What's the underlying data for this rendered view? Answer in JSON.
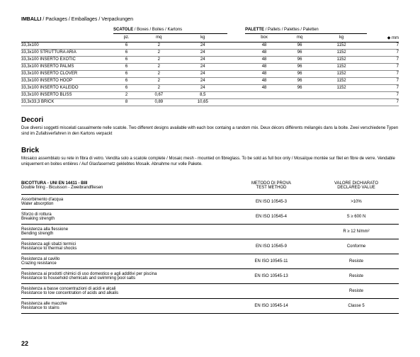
{
  "header": {
    "title": "IMBALLI",
    "multi": " / Packages / Emballages / Verpackungen"
  },
  "group1": {
    "label": "SCATOLE",
    "multi": " / Boxes / Boites / Kartons"
  },
  "group2": {
    "label": "PALETTE",
    "multi": " / Pallets / Palettes / Paletten"
  },
  "cols": {
    "c1": "pz.",
    "c2": "mq",
    "c3": "kg",
    "c4": "box",
    "c5": "mq",
    "c6": "kg",
    "c7": "◆ mm"
  },
  "rows": [
    {
      "name": "33,3x100",
      "pz": "6",
      "mq": "2",
      "kg": "24",
      "box": "48",
      "pmq": "96",
      "pkg": "1152",
      "mm": "7"
    },
    {
      "name": "33,3x100 STRUTTURA ARIA",
      "pz": "6",
      "mq": "2",
      "kg": "24",
      "box": "48",
      "pmq": "96",
      "pkg": "1152",
      "mm": "7"
    },
    {
      "name": "33,3x100 INSERTO EXOTIC",
      "pz": "6",
      "mq": "2",
      "kg": "24",
      "box": "48",
      "pmq": "96",
      "pkg": "1152",
      "mm": "7"
    },
    {
      "name": "33,3x100 INSERTO PALMS",
      "pz": "6",
      "mq": "2",
      "kg": "24",
      "box": "48",
      "pmq": "96",
      "pkg": "1152",
      "mm": "7"
    },
    {
      "name": "33,3x100 INSERTO CLOVER",
      "pz": "6",
      "mq": "2",
      "kg": "24",
      "box": "48",
      "pmq": "96",
      "pkg": "1152",
      "mm": "7"
    },
    {
      "name": "33,3x100 INSERTO HOOP",
      "pz": "6",
      "mq": "2",
      "kg": "24",
      "box": "48",
      "pmq": "96",
      "pkg": "1152",
      "mm": "7"
    },
    {
      "name": "33,3x100 INSERTO KALEIDO",
      "pz": "6",
      "mq": "2",
      "kg": "24",
      "box": "48",
      "pmq": "96",
      "pkg": "1152",
      "mm": "7"
    },
    {
      "name": "33,3x100 INSERTO BLISS",
      "pz": "2",
      "mq": "0,67",
      "kg": "8,5",
      "box": "",
      "pmq": "",
      "pkg": "",
      "mm": "7"
    },
    {
      "name": "33,3x33,3 BRICK",
      "pz": "8",
      "mq": "0,89",
      "kg": "10,65",
      "box": "",
      "pmq": "",
      "pkg": "",
      "mm": "7"
    }
  ],
  "decori": {
    "title": "Decori",
    "text": "Due diversi soggetti miscelati casualmente nelle scatole. Two different designs available with each box containg a random mix. Deux décors différents mélangés dans la boite. Zwei verschiedene Typen sind im Zufallsverfahren in den Kartons verpackt"
  },
  "brick": {
    "title": "Brick",
    "text": "Mosaico assemblato su rete in fibra di vetro. Vendita solo a scatole complete / Mosaic mesh - mounted on fibreglass. To be sold as full box only / Mosaïque montée sur filet en fibre de verre. Vendable uniquement en boites entières / Auf Glasfasernetz geklebtes Mosaik. Abnahme nur volle Pakete."
  },
  "props": {
    "h1a": "BICOTTURA - UNI EN 14411 - BIII",
    "h1b": "Double firing - Bicuisson - Zweibrandfliesen",
    "h2a": "METODO DI PROVA",
    "h2b": "TEST METHOD",
    "h3a": "VALORE DICHIARATO",
    "h3b": "DECLARED VALUE",
    "rows": [
      {
        "a": "Assorbimento d'acqua",
        "b": "Water absorption",
        "m": "EN ISO 10545-3",
        "v": ">10%"
      },
      {
        "a": "Sforzo di rottura",
        "b": "Breaking strength",
        "m": "EN ISO 10545-4",
        "v": "S ≥ 600 N"
      },
      {
        "a": "Resistenza alla flessione",
        "b": "Bending strength",
        "m": "",
        "v": "R ≥ 12 N/mm²"
      },
      {
        "a": "Resistenza agli sbalzi termici",
        "b": "Resistance to thermal shocks",
        "m": "EN ISO 10545-9",
        "v": "Conforme"
      },
      {
        "a": "Resistenza al cavillo",
        "b": "Crazing resistance",
        "m": "EN ISO 10545-11",
        "v": "Resiste"
      },
      {
        "a": "Resistenza ai prodotti chimici di uso domestico e agli additivi per piscina",
        "b": "Resistance to household chemicals and swimming pool salts",
        "m": "EN ISO 10545-13",
        "v": "Resiste"
      },
      {
        "a": "Resistenza a basse concentrazioni di acidi e alcali",
        "b": "Resistance to low concentration of acids and alkalis",
        "m": "",
        "v": "Resiste"
      },
      {
        "a": "Resistenza alle macchie",
        "b": "Resistance to stains",
        "m": "EN ISO 10545-14",
        "v": "Classe 5"
      }
    ]
  },
  "pagenum": "22"
}
